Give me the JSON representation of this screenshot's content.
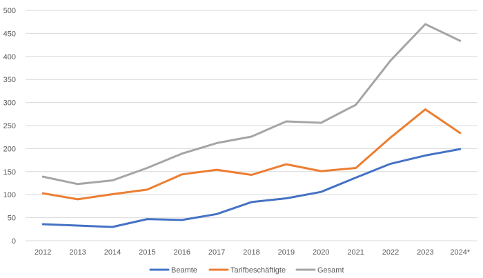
{
  "chart_data": {
    "type": "line",
    "title": "",
    "xlabel": "",
    "ylabel": "",
    "categories": [
      "2012",
      "2013",
      "2014",
      "2015",
      "2016",
      "2017",
      "2018",
      "2019",
      "2020",
      "2021",
      "2022",
      "2023",
      "2024*"
    ],
    "ylim": [
      0,
      500
    ],
    "yticks": [
      "0",
      "50",
      "100",
      "150",
      "200",
      "250",
      "300",
      "350",
      "400",
      "450",
      "500"
    ],
    "grid": true,
    "legend_position": "bottom",
    "series": [
      {
        "name": "Beamte",
        "color": "#4472c4",
        "values": [
          36,
          33,
          30,
          47,
          45,
          58,
          84,
          92,
          106,
          137,
          167,
          185,
          199
        ]
      },
      {
        "name": "Tarifbeschäftigte",
        "color": "#ed7d31",
        "values": [
          103,
          90,
          101,
          111,
          144,
          154,
          143,
          166,
          151,
          158,
          224,
          285,
          234
        ]
      },
      {
        "name": "Gesamt",
        "color": "#a5a5a5",
        "values": [
          139,
          123,
          131,
          158,
          189,
          212,
          226,
          259,
          256,
          295,
          391,
          470,
          434
        ]
      }
    ]
  }
}
